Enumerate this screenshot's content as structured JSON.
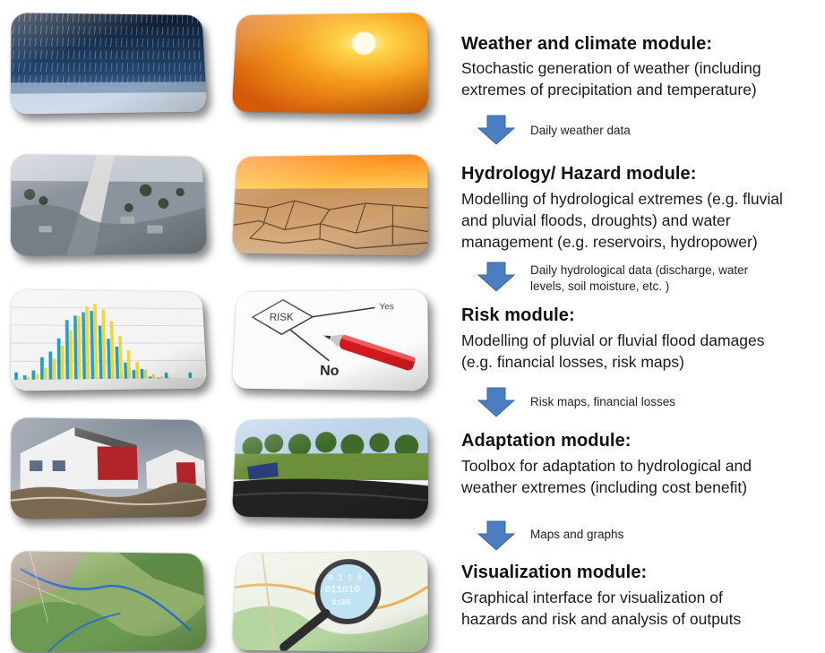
{
  "colors": {
    "arrow": "#4a7ec0",
    "arrow_edge": "#3a679e"
  },
  "images": [
    {
      "row": 1,
      "side": "left",
      "subject": "heavy rain"
    },
    {
      "row": 1,
      "side": "right",
      "subject": "sun in orange sky"
    },
    {
      "row": 2,
      "side": "left",
      "subject": "flooded highway and town"
    },
    {
      "row": 2,
      "side": "right",
      "subject": "cracked dry earth under sunset"
    },
    {
      "row": 3,
      "side": "left",
      "subject": "bar chart with blue and yellow bars"
    },
    {
      "row": 3,
      "side": "right",
      "subject": "risk decision flowchart with red pen"
    },
    {
      "row": 4,
      "side": "left",
      "subject": "houses near flood water"
    },
    {
      "row": 4,
      "side": "right",
      "subject": "reservoir with solar panels and trees"
    },
    {
      "row": 5,
      "side": "left",
      "subject": "terrain map with rivers"
    },
    {
      "row": 5,
      "side": "right",
      "subject": "map with magnifying glass and binary digits"
    }
  ],
  "sketch_text": {
    "risk": "RISK",
    "yes": "Yes",
    "no": "No",
    "binary": [
      "0 1 1 0",
      "011010",
      "0100"
    ]
  },
  "modules": [
    {
      "title": "Weather and climate module:",
      "description": [
        "Stochastic generation of weather (including",
        "extremes of precipitation and temperature)"
      ],
      "arrow_label": [
        "Daily weather data"
      ]
    },
    {
      "title": "Hydrology/ Hazard module:",
      "description": [
        "Modelling of hydrological extremes (e.g. fluvial",
        "and pluvial floods, droughts) and water",
        "management (e.g. reservoirs, hydropower)"
      ],
      "arrow_label": [
        "Daily hydrological data (discharge, water",
        "levels, soil moisture, etc. )"
      ]
    },
    {
      "title": "Risk module:",
      "description": [
        "Modelling of pluvial or fluvial flood damages",
        "(e.g. financial losses, risk maps)"
      ],
      "arrow_label": [
        "Risk maps, financial losses"
      ]
    },
    {
      "title": "Adaptation module:",
      "description": [
        "Toolbox for adaptation to hydrological and",
        "weather extremes (including cost benefit)"
      ],
      "arrow_label": [
        "Maps and graphs"
      ]
    },
    {
      "title": "Visualization module:",
      "description": [
        "Graphical interface for visualization of",
        "hazards and risk and analysis of outputs"
      ]
    }
  ]
}
